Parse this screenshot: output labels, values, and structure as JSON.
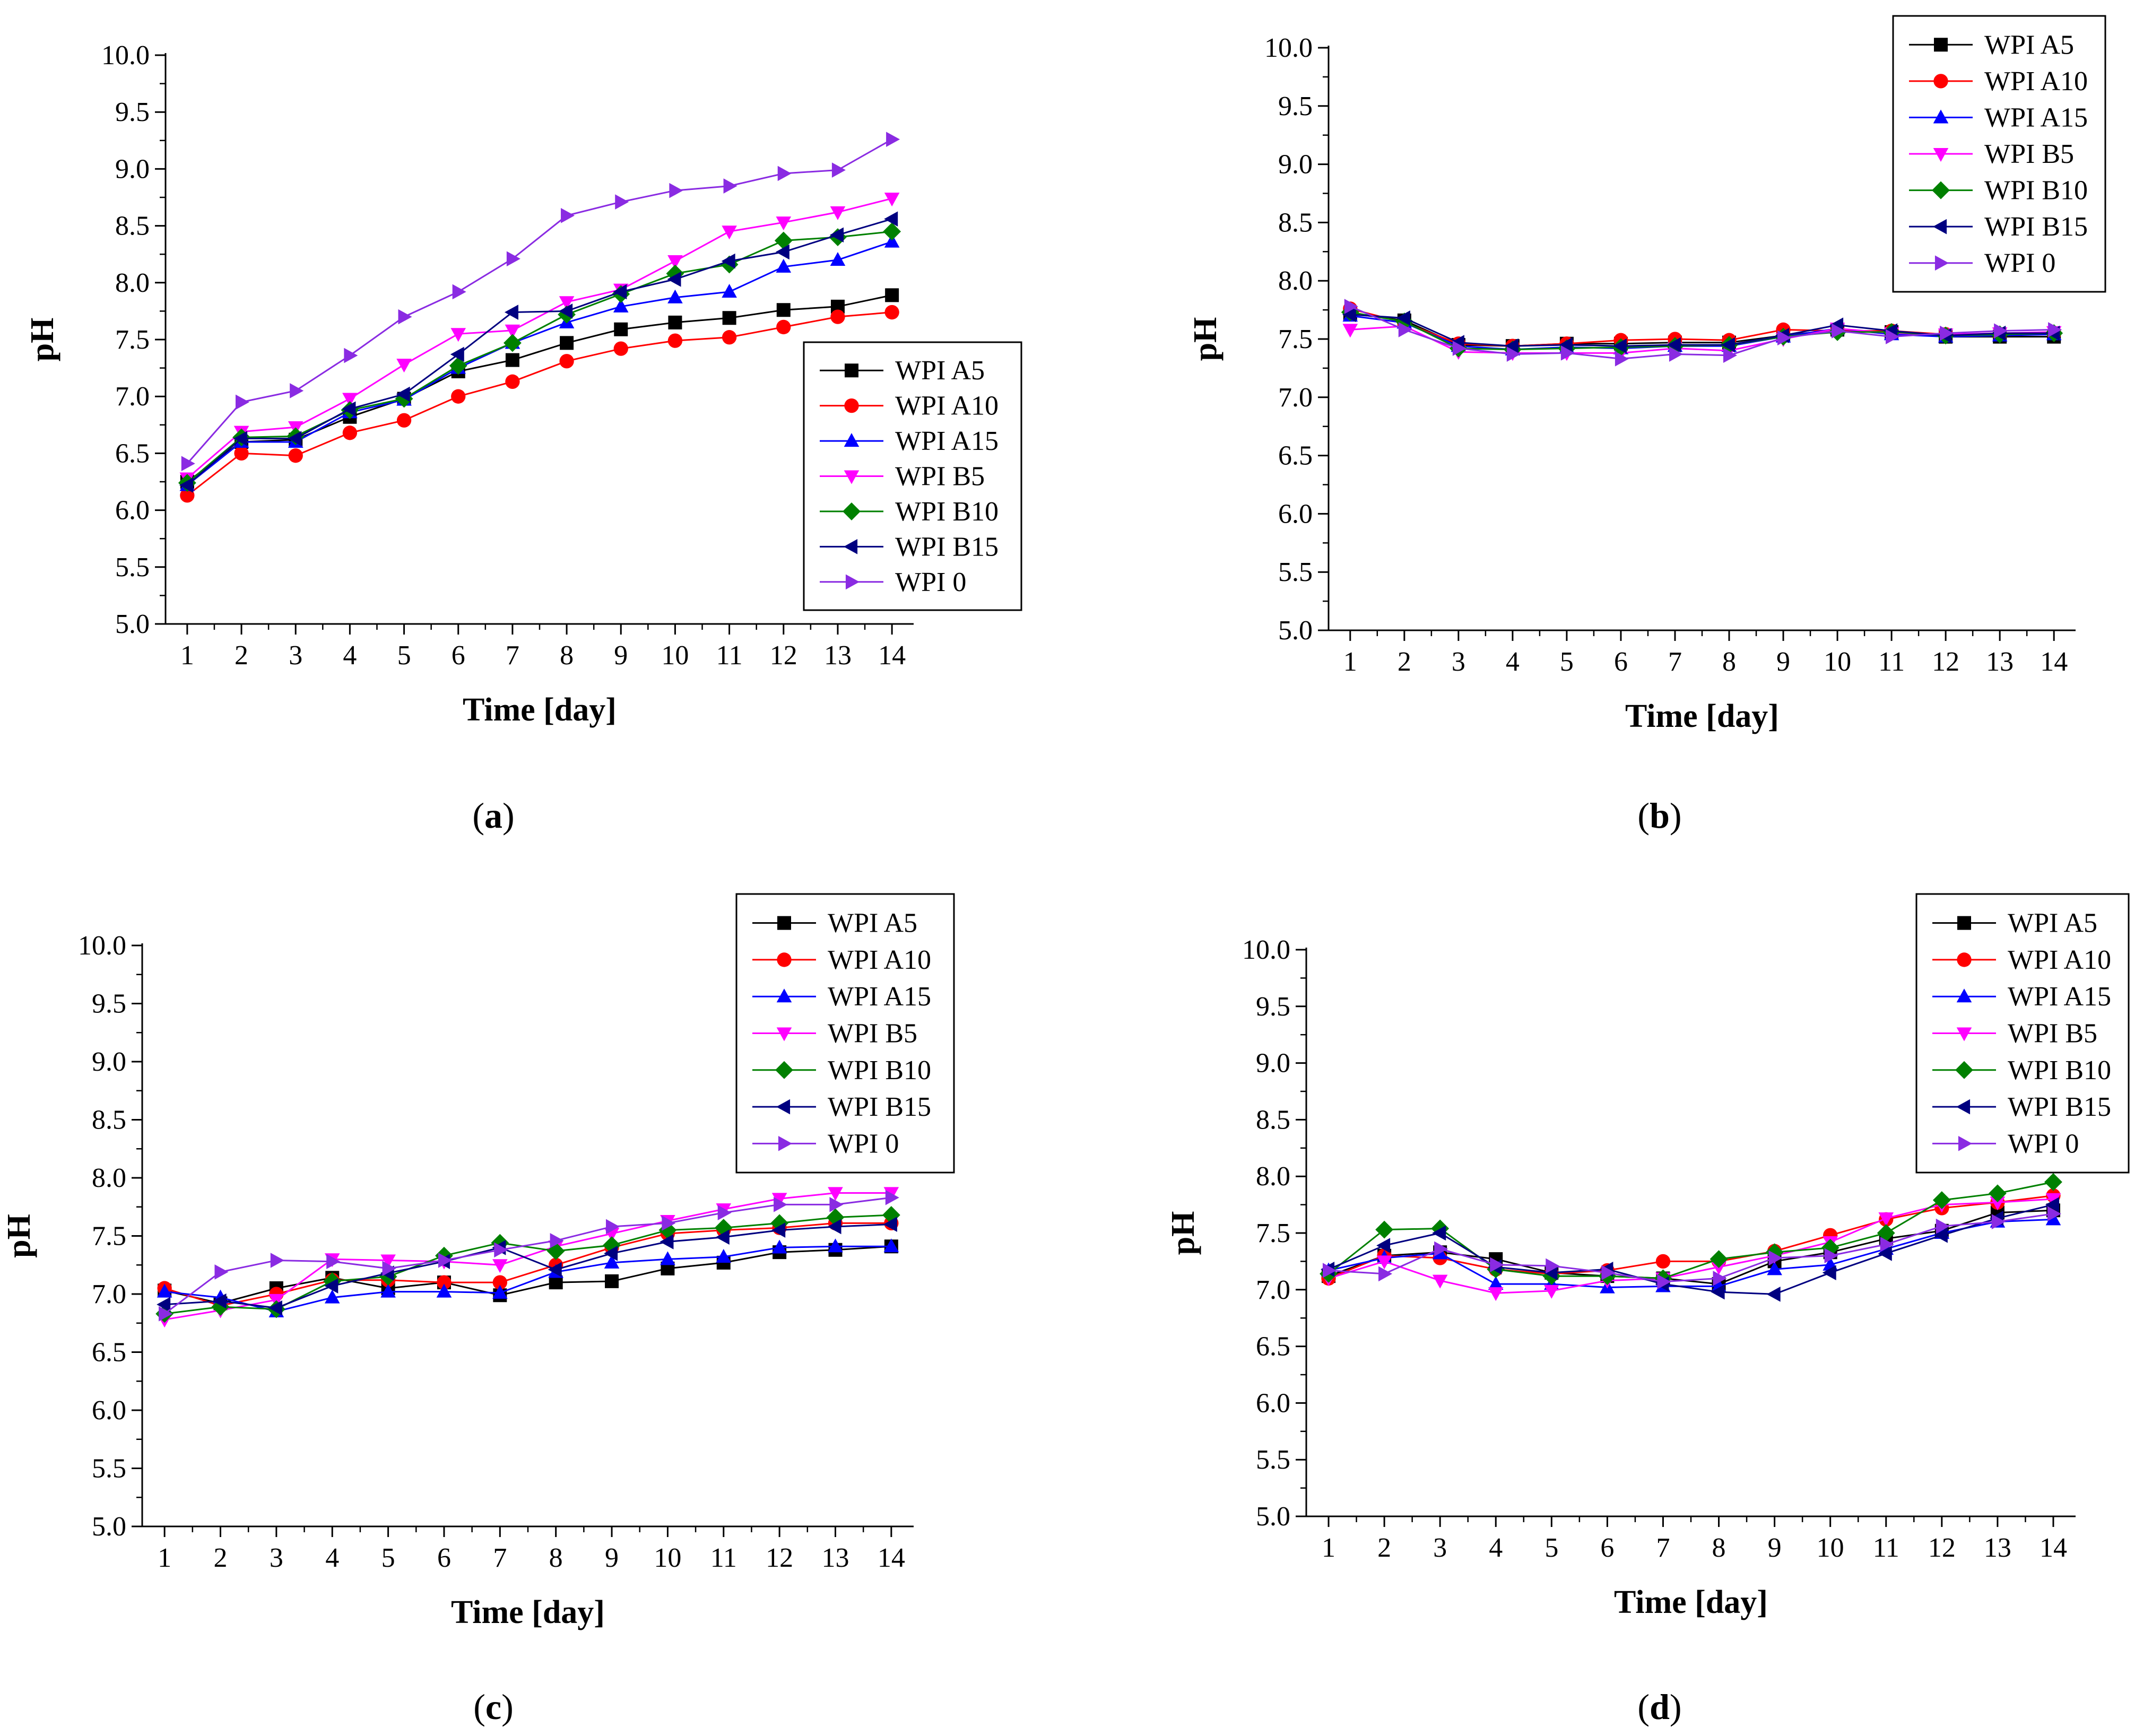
{
  "figure": {
    "series_names": [
      "WPI A5",
      "WPI A10",
      "WPI A15",
      "WPI B5",
      "WPI B10",
      "WPI B15",
      "WPI 0"
    ],
    "series_colors": [
      "#000000",
      "#ff0000",
      "#0000ff",
      "#ff00ff",
      "#008000",
      "#000080",
      "#8a2be2"
    ],
    "series_markers": [
      "square",
      "circle",
      "triangle-up",
      "triangle-down",
      "diamond",
      "triangle-left",
      "triangle-right"
    ]
  },
  "chart_data": [
    {
      "type": "line",
      "caption": "(a)",
      "caption_letter": "a",
      "xlabel": "Time [day]",
      "ylabel": "pH",
      "xlim": [
        0.6,
        14.4
      ],
      "ylim": [
        5.0,
        10.0
      ],
      "x": [
        1,
        2,
        3,
        4,
        5,
        6,
        7,
        8,
        9,
        10,
        11,
        12,
        13,
        14
      ],
      "xticks": [
        "1",
        "2",
        "3",
        "4",
        "5",
        "6",
        "7",
        "8",
        "9",
        "10",
        "11",
        "12",
        "13",
        "14"
      ],
      "yticks": [
        "5.0",
        "5.5",
        "6.0",
        "6.5",
        "7.0",
        "7.5",
        "8.0",
        "8.5",
        "9.0",
        "9.5",
        "10.0"
      ],
      "legend_position": "right-lower",
      "series": [
        {
          "name": "WPI A5",
          "values": [
            6.25,
            6.6,
            6.62,
            6.82,
            6.98,
            7.22,
            7.32,
            7.47,
            7.59,
            7.65,
            7.69,
            7.76,
            7.79,
            7.89
          ]
        },
        {
          "name": "WPI A10",
          "values": [
            6.13,
            6.5,
            6.48,
            6.68,
            6.79,
            7.0,
            7.13,
            7.31,
            7.42,
            7.49,
            7.52,
            7.61,
            7.7,
            7.74
          ]
        },
        {
          "name": "WPI A15",
          "values": [
            6.22,
            6.6,
            6.6,
            6.86,
            6.97,
            7.25,
            7.47,
            7.65,
            7.79,
            7.87,
            7.92,
            8.14,
            8.2,
            8.36
          ]
        },
        {
          "name": "WPI B5",
          "values": [
            6.28,
            6.69,
            6.73,
            6.98,
            7.28,
            7.55,
            7.58,
            7.83,
            7.94,
            8.19,
            8.45,
            8.53,
            8.62,
            8.74
          ]
        },
        {
          "name": "WPI B10",
          "values": [
            6.24,
            6.64,
            6.65,
            6.88,
            6.98,
            7.27,
            7.47,
            7.72,
            7.9,
            8.08,
            8.16,
            8.37,
            8.4,
            8.45
          ]
        },
        {
          "name": "WPI B15",
          "values": [
            6.22,
            6.63,
            6.63,
            6.89,
            7.02,
            7.37,
            7.74,
            7.75,
            7.92,
            8.03,
            8.19,
            8.27,
            8.42,
            8.56
          ]
        },
        {
          "name": "WPI 0",
          "values": [
            6.41,
            6.95,
            7.05,
            7.36,
            7.7,
            7.92,
            8.21,
            8.59,
            8.71,
            8.81,
            8.85,
            8.96,
            8.99,
            9.26
          ]
        }
      ]
    },
    {
      "type": "line",
      "caption": "(b)",
      "caption_letter": "b",
      "xlabel": "Time [day]",
      "ylabel": "pH",
      "xlim": [
        0.6,
        14.4
      ],
      "ylim": [
        5.0,
        10.0
      ],
      "x": [
        1,
        2,
        3,
        4,
        5,
        6,
        7,
        8,
        9,
        10,
        11,
        12,
        13,
        14
      ],
      "xticks": [
        "1",
        "2",
        "3",
        "4",
        "5",
        "6",
        "7",
        "8",
        "9",
        "10",
        "11",
        "12",
        "13",
        "14"
      ],
      "yticks": [
        "5.0",
        "5.5",
        "6.0",
        "6.5",
        "7.0",
        "7.5",
        "8.0",
        "8.5",
        "9.0",
        "9.5",
        "10.0"
      ],
      "legend_position": "top-right",
      "series": [
        {
          "name": "WPI A5",
          "values": [
            7.72,
            7.66,
            7.45,
            7.44,
            7.46,
            7.46,
            7.47,
            7.47,
            7.53,
            7.58,
            7.56,
            7.52,
            7.52,
            7.52
          ]
        },
        {
          "name": "WPI A10",
          "values": [
            7.76,
            7.64,
            7.46,
            7.44,
            7.46,
            7.49,
            7.5,
            7.49,
            7.58,
            7.57,
            7.57,
            7.54,
            7.54,
            7.55
          ]
        },
        {
          "name": "WPI A15",
          "values": [
            7.7,
            7.64,
            7.44,
            7.41,
            7.43,
            7.42,
            7.44,
            7.44,
            7.52,
            7.59,
            7.54,
            7.52,
            7.53,
            7.54
          ]
        },
        {
          "name": "WPI B5",
          "values": [
            7.58,
            7.61,
            7.39,
            7.38,
            7.38,
            7.38,
            7.42,
            7.4,
            7.5,
            7.59,
            7.55,
            7.54,
            7.55,
            7.56
          ]
        },
        {
          "name": "WPI B10",
          "values": [
            7.73,
            7.65,
            7.42,
            7.41,
            7.42,
            7.43,
            7.44,
            7.45,
            7.52,
            7.56,
            7.56,
            7.53,
            7.54,
            7.55
          ]
        },
        {
          "name": "WPI B15",
          "values": [
            7.71,
            7.68,
            7.47,
            7.44,
            7.45,
            7.44,
            7.45,
            7.45,
            7.53,
            7.62,
            7.57,
            7.53,
            7.55,
            7.55
          ]
        },
        {
          "name": "WPI 0",
          "values": [
            7.78,
            7.58,
            7.42,
            7.37,
            7.38,
            7.33,
            7.37,
            7.36,
            7.51,
            7.57,
            7.52,
            7.55,
            7.57,
            7.58
          ]
        }
      ]
    },
    {
      "type": "line",
      "caption": "(c)",
      "caption_letter": "c",
      "xlabel": "Time [day]",
      "ylabel": "pH",
      "xlim": [
        0.6,
        14.4
      ],
      "ylim": [
        5.0,
        10.0
      ],
      "x": [
        1,
        2,
        3,
        4,
        5,
        6,
        7,
        8,
        9,
        10,
        11,
        12,
        13,
        14
      ],
      "xticks": [
        "1",
        "2",
        "3",
        "4",
        "5",
        "6",
        "7",
        "8",
        "9",
        "10",
        "11",
        "12",
        "13",
        "14"
      ],
      "yticks": [
        "5.0",
        "5.5",
        "6.0",
        "6.5",
        "7.0",
        "7.5",
        "8.0",
        "8.5",
        "9.0",
        "9.5",
        "10.0"
      ],
      "legend_position": "top-right",
      "series": [
        {
          "name": "WPI A5",
          "values": [
            7.03,
            6.92,
            7.05,
            7.14,
            7.05,
            7.1,
            6.99,
            7.1,
            7.11,
            7.22,
            7.27,
            7.36,
            7.38,
            7.41
          ]
        },
        {
          "name": "WPI A10",
          "values": [
            7.05,
            6.9,
            7.0,
            7.12,
            7.12,
            7.1,
            7.1,
            7.25,
            7.4,
            7.52,
            7.55,
            7.57,
            7.61,
            7.61
          ]
        },
        {
          "name": "WPI A15",
          "values": [
            7.02,
            6.97,
            6.85,
            6.97,
            7.02,
            7.02,
            7.01,
            7.19,
            7.27,
            7.3,
            7.32,
            7.4,
            7.41,
            7.41
          ]
        },
        {
          "name": "WPI B5",
          "values": [
            6.78,
            6.86,
            6.95,
            7.3,
            7.29,
            7.28,
            7.25,
            7.41,
            7.52,
            7.63,
            7.73,
            7.82,
            7.87,
            7.87
          ]
        },
        {
          "name": "WPI B10",
          "values": [
            6.83,
            6.89,
            6.87,
            7.11,
            7.15,
            7.33,
            7.44,
            7.37,
            7.42,
            7.55,
            7.57,
            7.61,
            7.66,
            7.68
          ]
        },
        {
          "name": "WPI B15",
          "values": [
            6.91,
            6.94,
            6.88,
            7.07,
            7.18,
            7.28,
            7.4,
            7.21,
            7.35,
            7.45,
            7.49,
            7.55,
            7.58,
            7.6
          ]
        },
        {
          "name": "WPI 0",
          "values": [
            6.83,
            7.19,
            7.29,
            7.28,
            7.22,
            7.29,
            7.38,
            7.46,
            7.58,
            7.61,
            7.7,
            7.77,
            7.77,
            7.83
          ]
        }
      ]
    },
    {
      "type": "line",
      "caption": "(d)",
      "caption_letter": "d",
      "xlabel": "Time [day]",
      "ylabel": "pH",
      "xlim": [
        0.6,
        14.4
      ],
      "ylim": [
        5.0,
        10.0
      ],
      "x": [
        1,
        2,
        3,
        4,
        5,
        6,
        7,
        8,
        9,
        10,
        11,
        12,
        13,
        14
      ],
      "xticks": [
        "1",
        "2",
        "3",
        "4",
        "5",
        "6",
        "7",
        "8",
        "9",
        "10",
        "11",
        "12",
        "13",
        "14"
      ],
      "yticks": [
        "5.0",
        "5.5",
        "6.0",
        "6.5",
        "7.0",
        "7.5",
        "8.0",
        "8.5",
        "9.0",
        "9.5",
        "10.0"
      ],
      "legend_position": "top-right",
      "series": [
        {
          "name": "WPI A5",
          "values": [
            7.12,
            7.3,
            7.33,
            7.27,
            7.15,
            7.12,
            7.1,
            7.05,
            7.25,
            7.33,
            7.45,
            7.52,
            7.68,
            7.7
          ]
        },
        {
          "name": "WPI A10",
          "values": [
            7.1,
            7.3,
            7.28,
            7.18,
            7.14,
            7.17,
            7.25,
            7.25,
            7.34,
            7.48,
            7.62,
            7.72,
            7.77,
            7.83
          ]
        },
        {
          "name": "WPI A15",
          "values": [
            7.17,
            7.28,
            7.32,
            7.05,
            7.05,
            7.02,
            7.03,
            7.03,
            7.18,
            7.22,
            7.36,
            7.5,
            7.6,
            7.62
          ]
        },
        {
          "name": "WPI B5",
          "values": [
            7.1,
            7.25,
            7.08,
            6.97,
            6.99,
            7.08,
            7.1,
            7.2,
            7.3,
            7.42,
            7.63,
            7.75,
            7.77,
            7.8
          ]
        },
        {
          "name": "WPI B10",
          "values": [
            7.14,
            7.53,
            7.54,
            7.18,
            7.12,
            7.12,
            7.1,
            7.27,
            7.33,
            7.37,
            7.5,
            7.79,
            7.85,
            7.95
          ]
        },
        {
          "name": "WPI B15",
          "values": [
            7.18,
            7.39,
            7.5,
            7.2,
            7.15,
            7.18,
            7.05,
            6.98,
            6.96,
            7.15,
            7.32,
            7.48,
            7.63,
            7.75
          ]
        },
        {
          "name": "WPI 0",
          "values": [
            7.17,
            7.14,
            7.36,
            7.22,
            7.21,
            7.15,
            7.07,
            7.1,
            7.28,
            7.3,
            7.4,
            7.56,
            7.6,
            7.67
          ]
        }
      ]
    }
  ]
}
